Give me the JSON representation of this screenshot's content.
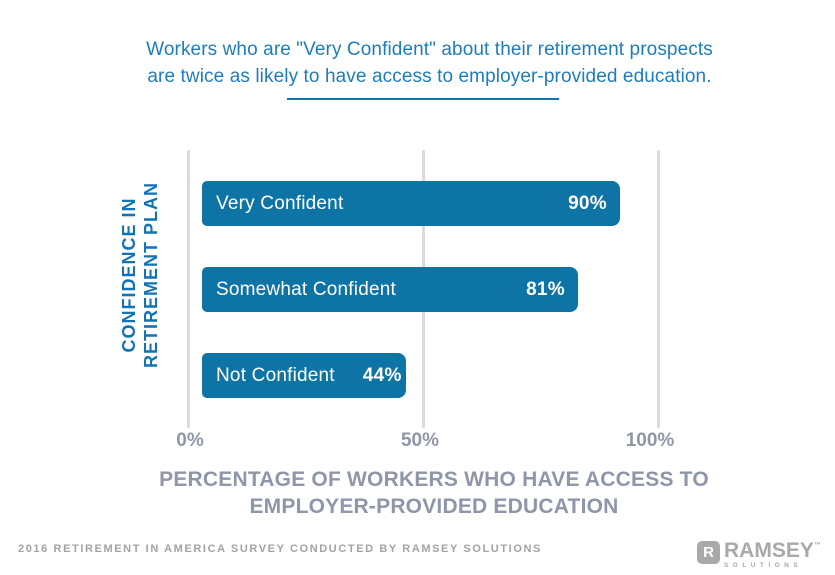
{
  "title": {
    "line1": "Workers who are \"Very Confident\" about their retirement prospects",
    "line2": "are twice as likely to have access to employer-provided education."
  },
  "chart_data": {
    "type": "bar",
    "orientation": "horizontal",
    "title": "Workers who are \"Very Confident\" about their retirement prospects are twice as likely to have access to employer-provided education.",
    "categories": [
      "Very Confident",
      "Somewhat Confident",
      "Not Confident"
    ],
    "values": [
      90,
      81,
      44
    ],
    "value_labels": [
      "90%",
      "81%",
      "44%"
    ],
    "ylabel": "CONFIDENCE IN RETIREMENT PLAN",
    "ylabel_line1": "CONFIDENCE IN",
    "ylabel_line2": "RETIREMENT PLAN",
    "xlabel": "PERCENTAGE OF WORKERS WHO HAVE ACCESS TO EMPLOYER-PROVIDED EDUCATION",
    "xlabel_line1": "PERCENTAGE OF WORKERS WHO HAVE ACCESS TO",
    "xlabel_line2": "EMPLOYER-PROVIDED EDUCATION",
    "x_ticks": [
      "0%",
      "50%",
      "100%"
    ],
    "xlim": [
      0,
      100
    ],
    "grid": "vertical-gridlines-at-0-50-100",
    "legend": "none",
    "bar_color": "#0E74A6",
    "title_color": "#1E7CBE",
    "axis_text_color": "#8E96AA"
  },
  "footer": {
    "source": "2016 RETIREMENT IN AMERICA SURVEY CONDUCTED BY RAMSEY SOLUTIONS"
  },
  "logo": {
    "badge_letter": "R",
    "name": "RAMSEY",
    "trademark": "™",
    "subtitle": "SOLUTIONS"
  }
}
